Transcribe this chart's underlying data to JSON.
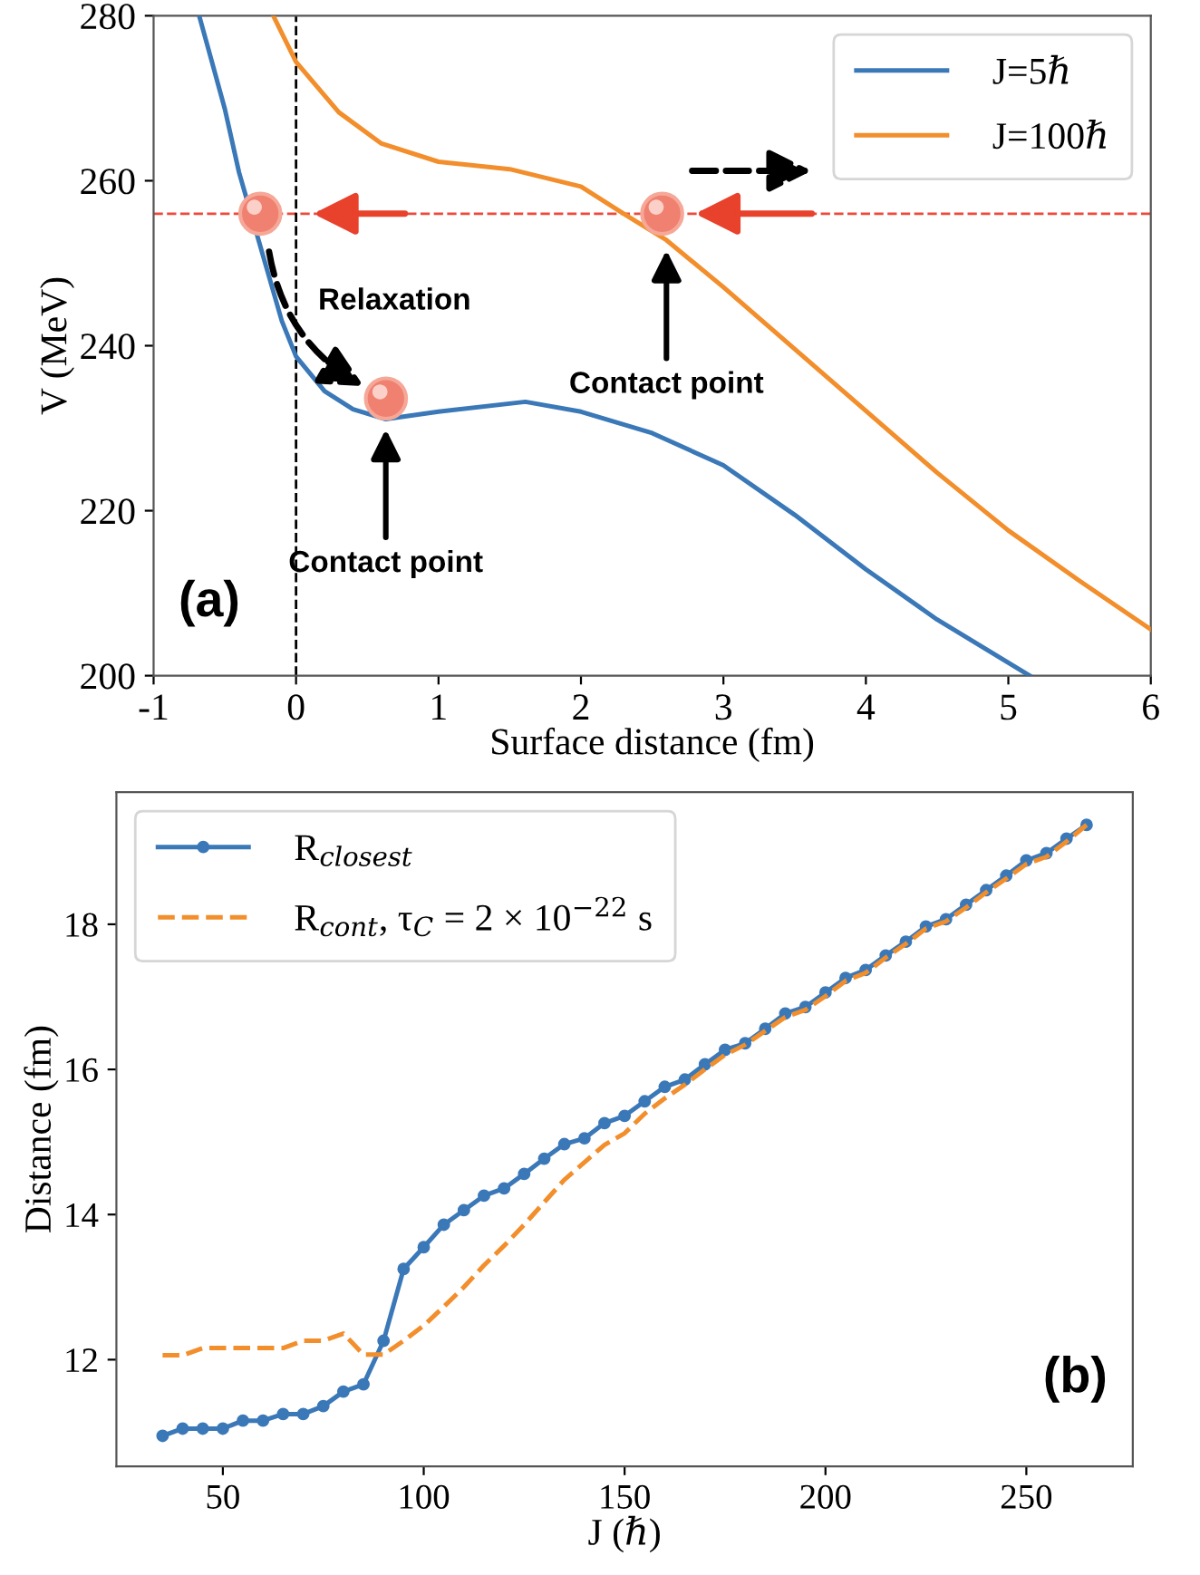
{
  "chart_data": [
    {
      "type": "line",
      "xlabel": "Surface distance (fm)",
      "ylabel": "V (MeV)",
      "xlim": [
        -1,
        6
      ],
      "ylim": [
        200,
        280
      ],
      "xticks": [
        -1,
        0,
        1,
        2,
        3,
        4,
        5,
        6
      ],
      "yticks": [
        200,
        220,
        240,
        260,
        280
      ],
      "grid": false,
      "legend": "top right",
      "marker": "none",
      "line_style": "solid",
      "series": [
        {
          "name": "J=5ℏ",
          "color": "#3a78b8",
          "x": [
            -0.68,
            -0.6,
            -0.5,
            -0.4,
            -0.1,
            0,
            0.2,
            0.4,
            0.63,
            1,
            1.61,
            2,
            2.5,
            3,
            3.5,
            4,
            4.5,
            5.15
          ],
          "values": [
            280,
            275,
            268.7,
            261,
            243,
            238.7,
            234.5,
            232.3,
            231.1,
            232,
            233.2,
            232,
            229.4,
            225.5,
            219.5,
            212.9,
            206.8,
            200
          ]
        },
        {
          "name": "J=100ℏ",
          "color": "#f28e2b",
          "x": [
            -0.16,
            0,
            0.3,
            0.6,
            1,
            1.5,
            2,
            2.3,
            2.6,
            3,
            3.5,
            4,
            4.5,
            5,
            5.5,
            6
          ],
          "values": [
            280,
            274.4,
            268.3,
            264.5,
            262.3,
            261.4,
            259.3,
            256,
            252.8,
            247.1,
            239.6,
            232.1,
            224.6,
            217.6,
            211.5,
            205.6
          ]
        }
      ],
      "ref_lines": [
        {
          "axis": "y",
          "value": 256,
          "color": "#ec4b3c",
          "line_style": "dashed"
        },
        {
          "axis": "x",
          "value": 0,
          "color": "#000000",
          "line_style": "dashed"
        }
      ],
      "annotations": [
        "Relaxation",
        {
          "text": "Contact point",
          "x": 0.63,
          "y": 231.1
        },
        {
          "text": "Contact point",
          "x": 2.6,
          "y": 252.8
        },
        "(a)"
      ]
    },
    {
      "type": "line",
      "xlabel": "J (ℏ)",
      "ylabel": "Distance (fm)",
      "xlim": [
        23.5,
        276.5
      ],
      "ylim": [
        10.53,
        19.82
      ],
      "xticks": [
        50,
        100,
        150,
        200,
        250
      ],
      "yticks": [
        12,
        14,
        16,
        18
      ],
      "grid": false,
      "legend": "top left",
      "x": [
        35,
        40,
        45,
        50,
        55,
        60,
        65,
        70,
        75,
        80,
        85,
        90,
        95,
        100,
        105,
        110,
        115,
        120,
        125,
        130,
        135,
        140,
        145,
        150,
        155,
        160,
        165,
        170,
        175,
        180,
        185,
        190,
        195,
        200,
        205,
        210,
        215,
        220,
        225,
        230,
        235,
        240,
        245,
        250,
        255,
        260,
        265
      ],
      "series": [
        {
          "name": "R$_{closest}$",
          "color": "#3a78b8",
          "marker": "circle",
          "line_style": "solid",
          "values": [
            10.95,
            11.05,
            11.05,
            11.05,
            11.16,
            11.16,
            11.25,
            11.25,
            11.36,
            11.56,
            11.66,
            12.26,
            13.25,
            13.55,
            13.86,
            14.06,
            14.26,
            14.36,
            14.56,
            14.77,
            14.97,
            15.05,
            15.26,
            15.36,
            15.56,
            15.76,
            15.86,
            16.07,
            16.27,
            16.36,
            16.56,
            16.77,
            16.86,
            17.06,
            17.26,
            17.37,
            17.57,
            17.76,
            17.97,
            18.07,
            18.27,
            18.47,
            18.67,
            18.88,
            18.98,
            19.18,
            19.37
          ]
        },
        {
          "name": "R$_{cont}$, τ$_{C}$ = 2 × 10$^{−22}$ s",
          "color": "#f28e2b",
          "marker": "none",
          "line_style": "dashed",
          "values": [
            12.06,
            12.06,
            12.16,
            12.16,
            12.16,
            12.16,
            12.16,
            12.26,
            12.26,
            12.36,
            12.07,
            12.07,
            12.26,
            12.47,
            12.73,
            13.0,
            13.3,
            13.57,
            13.86,
            14.17,
            14.48,
            14.72,
            14.96,
            15.12,
            15.39,
            15.6,
            15.79,
            16.0,
            16.2,
            16.34,
            16.53,
            16.72,
            16.82,
            17.01,
            17.22,
            17.33,
            17.54,
            17.73,
            17.94,
            18.04,
            18.23,
            18.44,
            18.63,
            18.83,
            18.93,
            19.14,
            19.37
          ]
        }
      ],
      "annotations": [
        "(b)"
      ]
    }
  ]
}
